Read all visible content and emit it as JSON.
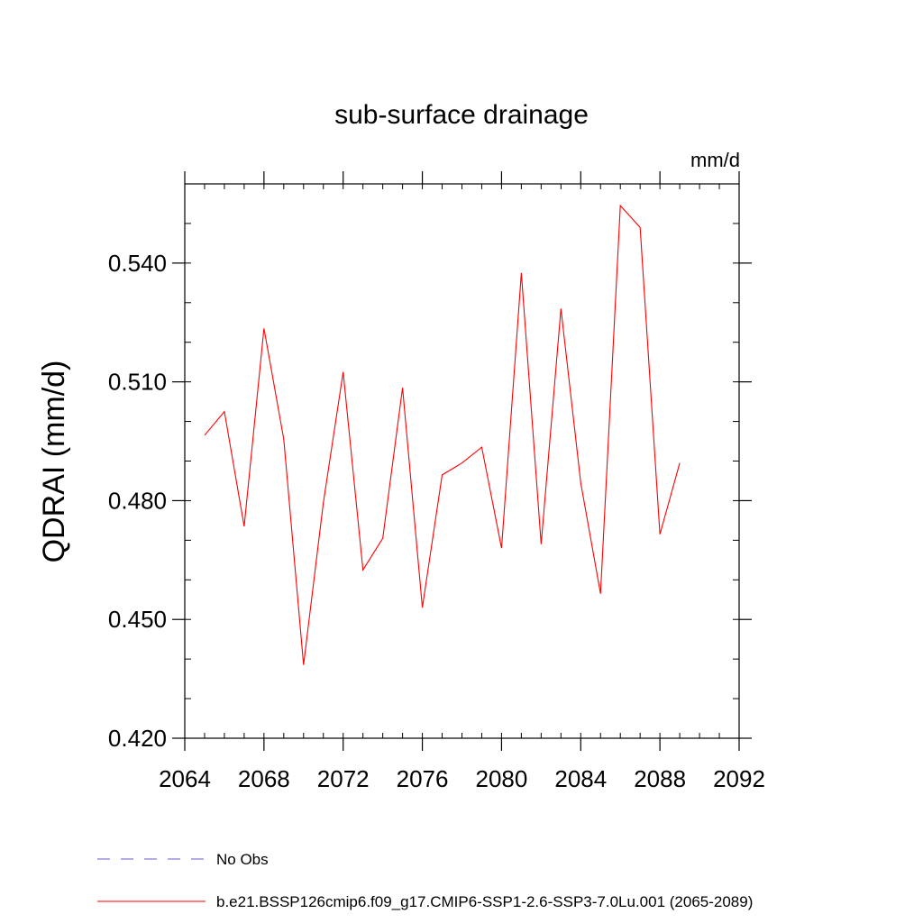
{
  "chart_data": {
    "type": "line",
    "title": "sub-surface drainage",
    "units": "mm/d",
    "xlabel": "",
    "ylabel": "QDRAI  (mm/d)",
    "xlim": [
      2064,
      2092
    ],
    "ylim": [
      0.42,
      0.56
    ],
    "x_ticks": [
      2064,
      2068,
      2072,
      2076,
      2080,
      2084,
      2088,
      2092
    ],
    "x_tick_labels": [
      "2064",
      "2068",
      "2072",
      "2076",
      "2080",
      "2084",
      "2088",
      "2092"
    ],
    "y_ticks": [
      0.42,
      0.45,
      0.48,
      0.51,
      0.54
    ],
    "y_tick_labels": [
      "0.420",
      "0.450",
      "0.480",
      "0.510",
      "0.540"
    ],
    "grid": false,
    "legend_position": "bottom",
    "x": [
      2065,
      2066,
      2067,
      2068,
      2069,
      2070,
      2071,
      2072,
      2073,
      2074,
      2075,
      2076,
      2077,
      2078,
      2079,
      2080,
      2081,
      2082,
      2083,
      2084,
      2085,
      2086,
      2087,
      2088,
      2089
    ],
    "series": [
      {
        "name": "b.e21.BSSP126cmip6.f09_g17.CMIP6-SSP1-2.6-SSP3-7.0Lu.001 (2065-2089)",
        "color": "#ff0000",
        "style": "solid",
        "values": [
          0.4965,
          0.5025,
          0.4735,
          0.5235,
          0.4955,
          0.4385,
          0.4795,
          0.5125,
          0.4625,
          0.4705,
          0.5085,
          0.453,
          0.4865,
          0.4895,
          0.4935,
          0.468,
          0.5375,
          0.469,
          0.5285,
          0.4845,
          0.4565,
          0.5545,
          0.549,
          0.4715,
          0.4895
        ]
      }
    ],
    "legend": [
      {
        "label": "No Obs",
        "color": "#6a5acd",
        "style": "dashed"
      },
      {
        "label": "b.e21.BSSP126cmip6.f09_g17.CMIP6-SSP1-2.6-SSP3-7.0Lu.001 (2065-2089)",
        "color": "#ff0000",
        "style": "solid"
      }
    ]
  }
}
